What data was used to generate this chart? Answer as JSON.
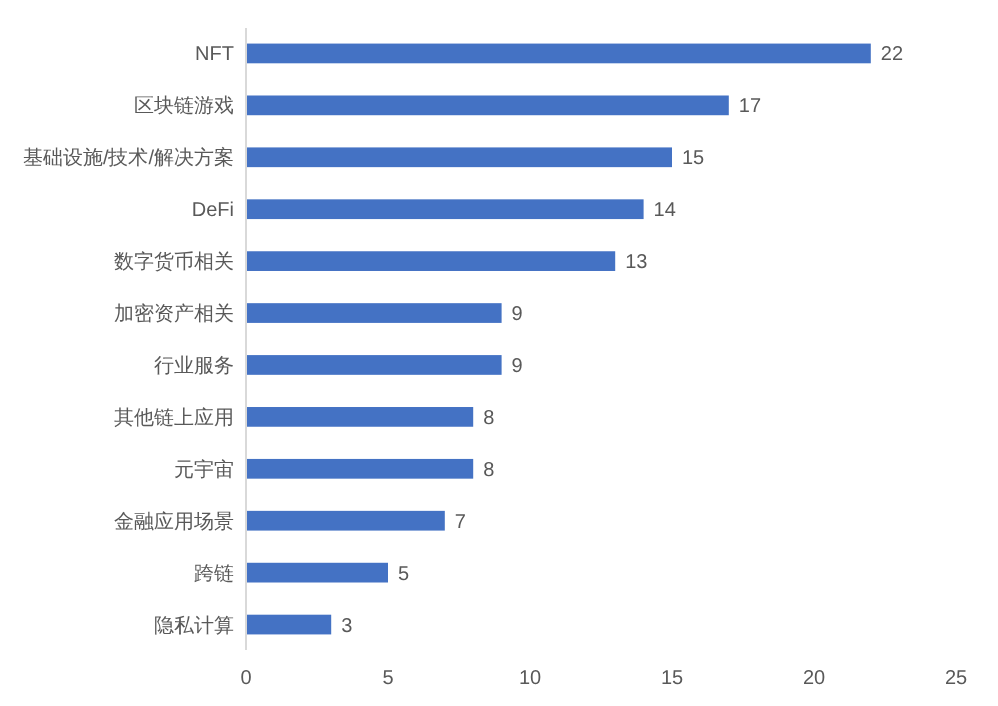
{
  "chart_data": {
    "type": "bar",
    "orientation": "horizontal",
    "categories": [
      "NFT",
      "区块链游戏",
      "基础设施/技术/解决方案",
      "DeFi",
      "数字货币相关",
      "加密资产相关",
      "行业服务",
      "其他链上应用",
      "元宇宙",
      "金融应用场景",
      "跨链",
      "隐私计算"
    ],
    "values": [
      22,
      17,
      15,
      14,
      13,
      9,
      9,
      8,
      8,
      7,
      5,
      3
    ],
    "color": "#4472c4",
    "xlim": [
      0,
      25
    ],
    "xticks": [
      0,
      5,
      10,
      15,
      20,
      25
    ],
    "data_labels": true
  }
}
